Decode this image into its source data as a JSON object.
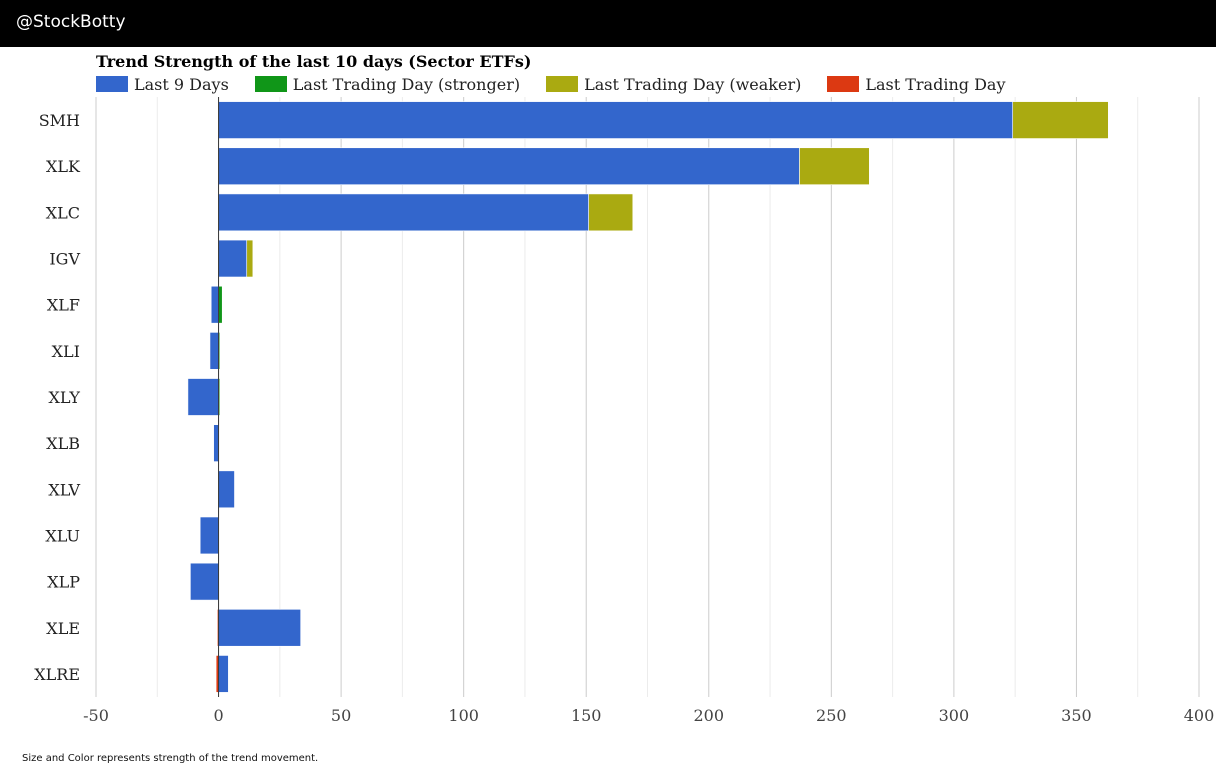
{
  "header": {
    "handle": "@StockBotty"
  },
  "footnote": "Size and Color represents strength of the trend movement.",
  "chart_data": {
    "type": "bar",
    "orientation": "horizontal",
    "stacked": true,
    "title": "Trend Strength of the last 10 days (Sector ETFs)",
    "xlim": [
      -50,
      400
    ],
    "xticks": [
      -50,
      0,
      50,
      100,
      150,
      200,
      250,
      300,
      350,
      400
    ],
    "grid": true,
    "legend_position": "top-left",
    "colors": {
      "last9": "#3366cc",
      "stronger": "#109618",
      "weaker": "#aaaa11",
      "last": "#dc3912"
    },
    "legend": [
      {
        "label": "Last 9 Days",
        "color": "#3366cc"
      },
      {
        "label": "Last Trading Day (stronger)",
        "color": "#109618"
      },
      {
        "label": "Last Trading Day (weaker)",
        "color": "#aaaa11"
      },
      {
        "label": "Last Trading Day",
        "color": "#dc3912"
      }
    ],
    "categories": [
      "SMH",
      "XLK",
      "XLC",
      "IGV",
      "XLF",
      "XLI",
      "XLY",
      "XLB",
      "XLV",
      "XLU",
      "XLP",
      "XLE",
      "XLRE"
    ],
    "series": [
      {
        "name": "Last 9 Days",
        "values": [
          324,
          237,
          151,
          11.5,
          -3,
          -3.5,
          -12.5,
          -2,
          6.5,
          -7.5,
          -11.5,
          33.5,
          4
        ]
      },
      {
        "name": "Last Trading Day (stronger)",
        "values": [
          0,
          0,
          0,
          0,
          1.5,
          0.5,
          0.5,
          0,
          0,
          0,
          0,
          0,
          0
        ]
      },
      {
        "name": "Last Trading Day (weaker)",
        "values": [
          39,
          28.5,
          18,
          2.5,
          0,
          0,
          0,
          0,
          0,
          0,
          0,
          0,
          0
        ]
      },
      {
        "name": "Last Trading Day",
        "values": [
          0,
          0,
          0,
          0,
          0,
          0,
          0,
          0,
          0,
          0,
          0,
          -0.5,
          -1
        ]
      }
    ]
  }
}
